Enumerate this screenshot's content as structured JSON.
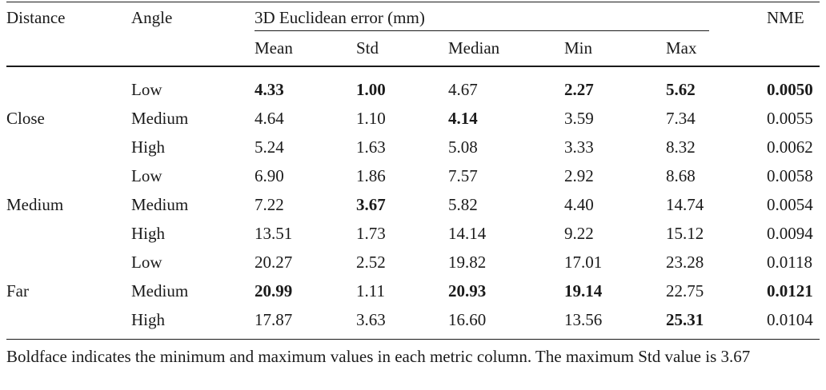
{
  "table": {
    "headers": {
      "distance": "Distance",
      "angle": "Angle",
      "group": "3D Euclidean error (mm)",
      "mean": "Mean",
      "std": "Std",
      "median": "Median",
      "min": "Min",
      "max": "Max",
      "nme": "NME"
    },
    "groups": [
      "Close",
      "Medium",
      "Far"
    ],
    "rows": [
      {
        "distance": "Close",
        "angle": "Low",
        "mean": "4.33",
        "std": "1.00",
        "median": "4.67",
        "min": "2.27",
        "max": "5.62",
        "nme": "0.0050",
        "bold": [
          "mean",
          "std",
          "min",
          "max",
          "nme"
        ]
      },
      {
        "distance": "Close",
        "angle": "Medium",
        "mean": "4.64",
        "std": "1.10",
        "median": "4.14",
        "min": "3.59",
        "max": "7.34",
        "nme": "0.0055",
        "bold": [
          "median"
        ]
      },
      {
        "distance": "Close",
        "angle": "High",
        "mean": "5.24",
        "std": "1.63",
        "median": "5.08",
        "min": "3.33",
        "max": "8.32",
        "nme": "0.0062",
        "bold": []
      },
      {
        "distance": "Medium",
        "angle": "Low",
        "mean": "6.90",
        "std": "1.86",
        "median": "7.57",
        "min": "2.92",
        "max": "8.68",
        "nme": "0.0058",
        "bold": []
      },
      {
        "distance": "Medium",
        "angle": "Medium",
        "mean": "7.22",
        "std": "3.67",
        "median": "5.82",
        "min": "4.40",
        "max": "14.74",
        "nme": "0.0054",
        "bold": [
          "std"
        ]
      },
      {
        "distance": "Medium",
        "angle": "High",
        "mean": "13.51",
        "std": "1.73",
        "median": "14.14",
        "min": "9.22",
        "max": "15.12",
        "nme": "0.0094",
        "bold": []
      },
      {
        "distance": "Far",
        "angle": "Low",
        "mean": "20.27",
        "std": "2.52",
        "median": "19.82",
        "min": "17.01",
        "max": "23.28",
        "nme": "0.0118",
        "bold": []
      },
      {
        "distance": "Far",
        "angle": "Medium",
        "mean": "20.99",
        "std": "1.11",
        "median": "20.93",
        "min": "19.14",
        "max": "22.75",
        "nme": "0.0121",
        "bold": [
          "mean",
          "median",
          "min",
          "nme"
        ]
      },
      {
        "distance": "Far",
        "angle": "High",
        "mean": "17.87",
        "std": "3.63",
        "median": "16.60",
        "min": "13.56",
        "max": "25.31",
        "nme": "0.0104",
        "bold": [
          "max"
        ]
      }
    ]
  },
  "caption": "Boldface indicates the minimum and maximum values in each metric column. The maximum Std value is 3.67"
}
